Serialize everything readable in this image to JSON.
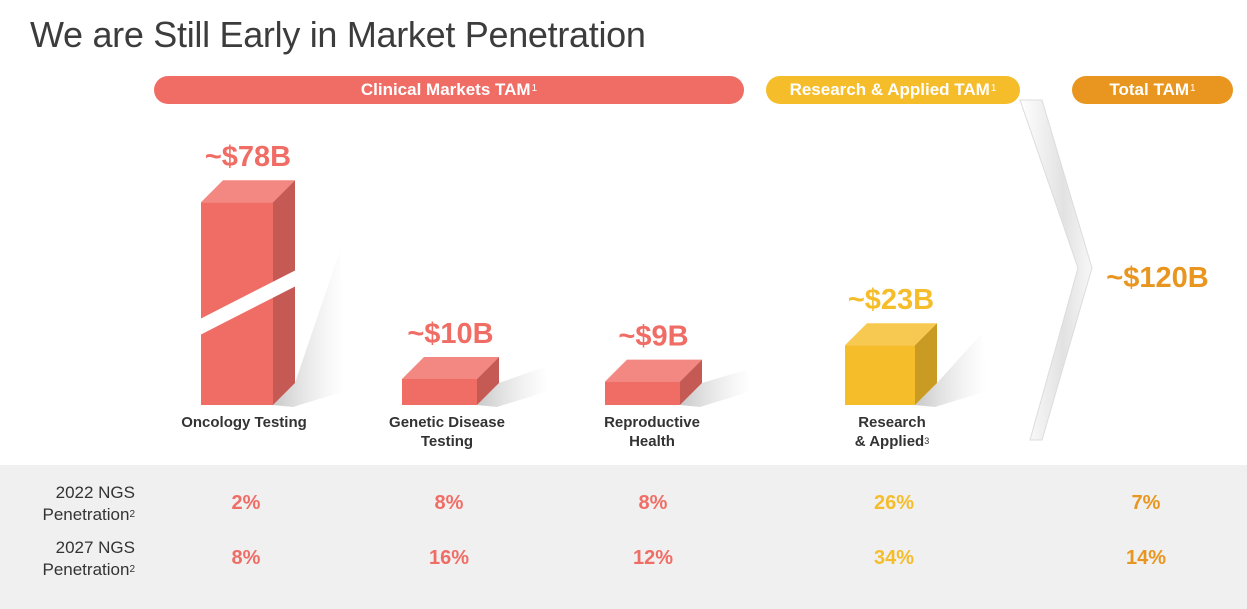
{
  "title": "We are Still Early in Market Penetration",
  "headers": {
    "clinical": {
      "label": "Clinical Markets TAM",
      "sup": "1"
    },
    "research": {
      "label": "Research & Applied TAM",
      "sup": "1"
    },
    "total": {
      "label": "Total TAM",
      "sup": "1"
    }
  },
  "colors": {
    "clinical": "#f06d66",
    "research": "#f6bd2b",
    "total": "#e8961f",
    "title": "#3c3c3c"
  },
  "categories": {
    "oncology": {
      "label": "Oncology Testing"
    },
    "genetic": {
      "line1": "Genetic Disease",
      "line2": "Testing"
    },
    "reproductive": {
      "line1": "Reproductive",
      "line2": "Health"
    },
    "research": {
      "line1": "Research",
      "line2": "& Applied",
      "sup": "3"
    }
  },
  "total_value": "~$120B",
  "table": {
    "row1": {
      "line1": "2022 NGS",
      "line2": "Penetration",
      "sup": "2",
      "values": [
        "2%",
        "8%",
        "8%",
        "26%",
        "7%"
      ]
    },
    "row2": {
      "line1": "2027 NGS",
      "line2": "Penetration",
      "sup": "2",
      "values": [
        "8%",
        "16%",
        "12%",
        "34%",
        "14%"
      ]
    }
  },
  "chart_data": {
    "type": "bar",
    "title": "We are Still Early in Market Penetration",
    "categories": [
      "Oncology Testing",
      "Genetic Disease Testing",
      "Reproductive Health",
      "Research & Applied"
    ],
    "values": [
      78,
      10,
      9,
      23
    ],
    "value_labels": [
      "~$78B",
      "~$10B",
      "~$9B",
      "~$23B"
    ],
    "groups": [
      "Clinical Markets TAM",
      "Clinical Markets TAM",
      "Clinical Markets TAM",
      "Research & Applied TAM"
    ],
    "unit": "$B",
    "total": 120,
    "axis_break": "oncology bar is truncated with a break",
    "grid": false,
    "legend": "none"
  }
}
